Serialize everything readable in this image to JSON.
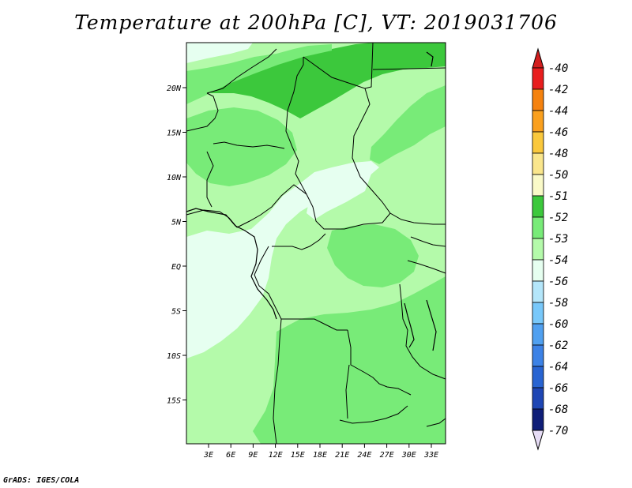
{
  "title": "Temperature at 200hPa [C], VT: 2019031706",
  "footer": "GrADS: IGES/COLA",
  "map": {
    "lon_ticks": [
      "3E",
      "6E",
      "9E",
      "12E",
      "15E",
      "18E",
      "21E",
      "24E",
      "27E",
      "30E",
      "33E"
    ],
    "lat_ticks": [
      "20N",
      "15N",
      "10N",
      "5N",
      "EQ",
      "5S",
      "10S",
      "15S"
    ]
  },
  "colorbar": {
    "levels": [
      {
        "label": "-40",
        "color": "#e81e1e"
      },
      {
        "label": "-42",
        "color": "#f0501e"
      },
      {
        "label": "-44",
        "color": "#f5820f"
      },
      {
        "label": "-46",
        "color": "#faa01e"
      },
      {
        "label": "-48",
        "color": "#fac83c"
      },
      {
        "label": "-50",
        "color": "#fae68c"
      },
      {
        "label": "-51",
        "color": "#fafac8"
      },
      {
        "label": "-52",
        "color": "#3cc83c"
      },
      {
        "label": "-53",
        "color": "#78eb78"
      },
      {
        "label": "-54",
        "color": "#b4faaa"
      },
      {
        "label": "-56",
        "color": "#e6fff0"
      },
      {
        "label": "-58",
        "color": "#b4e6fa"
      },
      {
        "label": "-60",
        "color": "#78c8fa"
      },
      {
        "label": "-62",
        "color": "#50a0f0"
      },
      {
        "label": "-64",
        "color": "#3c82e6"
      },
      {
        "label": "-66",
        "color": "#2864d2"
      },
      {
        "label": "-68",
        "color": "#1e46b4"
      },
      {
        "label": "-70",
        "color": "#0f1e78"
      }
    ],
    "bottom_color": "#e6dcf5",
    "top_color": "#d21e1e"
  }
}
